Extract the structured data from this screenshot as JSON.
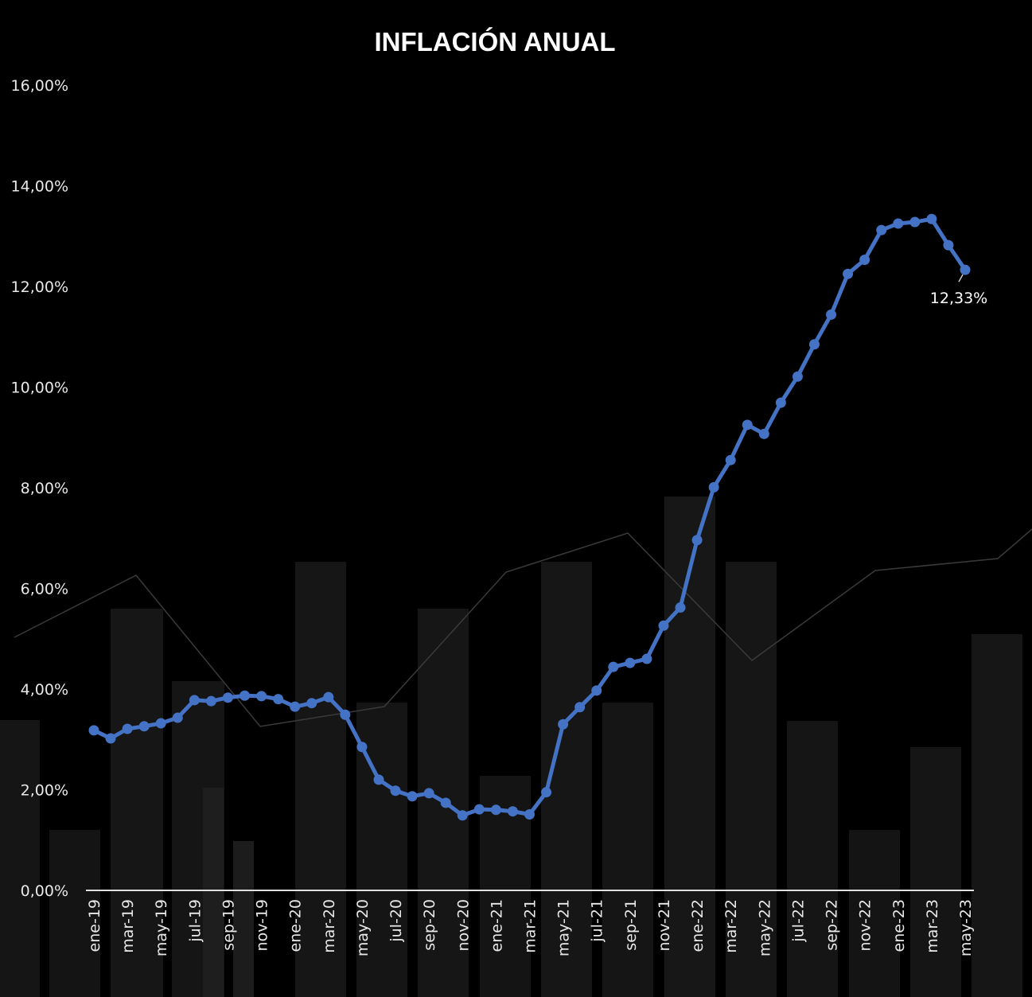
{
  "chart_data": {
    "type": "line",
    "title": "INFLACIÓN ANUAL",
    "xlabel": "",
    "ylabel": "",
    "ylim": [
      0,
      16
    ],
    "y_ticks": [
      "0,00%",
      "2,00%",
      "4,00%",
      "6,00%",
      "8,00%",
      "10,00%",
      "12,00%",
      "14,00%",
      "16,00%"
    ],
    "x_tick_labels": [
      "ene-19",
      "mar-19",
      "may-19",
      "jul-19",
      "sep-19",
      "nov-19",
      "ene-20",
      "mar-20",
      "may-20",
      "jul-20",
      "sep-20",
      "nov-20",
      "ene-21",
      "mar-21",
      "may-21",
      "jul-21",
      "sep-21",
      "nov-21",
      "ene-22",
      "mar-22",
      "may-22",
      "jul-22",
      "sep-22",
      "nov-22",
      "ene-23",
      "mar-23",
      "may-23"
    ],
    "grid": false,
    "legend": "none",
    "series": [
      {
        "name": "Inflación anual",
        "color": "#4472C4",
        "x": [
          "ene-19",
          "feb-19",
          "mar-19",
          "abr-19",
          "may-19",
          "jun-19",
          "jul-19",
          "ago-19",
          "sep-19",
          "oct-19",
          "nov-19",
          "dic-19",
          "ene-20",
          "feb-20",
          "mar-20",
          "abr-20",
          "may-20",
          "jun-20",
          "jul-20",
          "ago-20",
          "sep-20",
          "oct-20",
          "nov-20",
          "dic-20",
          "ene-21",
          "feb-21",
          "mar-21",
          "abr-21",
          "may-21",
          "jun-21",
          "jul-21",
          "ago-21",
          "sep-21",
          "oct-21",
          "nov-21",
          "dic-21",
          "ene-22",
          "feb-22",
          "mar-22",
          "abr-22",
          "may-22",
          "jun-22",
          "jul-22",
          "ago-22",
          "sep-22",
          "oct-22",
          "nov-22",
          "dic-22",
          "ene-23",
          "feb-23",
          "mar-23",
          "abr-23",
          "may-23"
        ],
        "values": [
          3.18,
          3.02,
          3.21,
          3.26,
          3.32,
          3.43,
          3.78,
          3.76,
          3.83,
          3.87,
          3.86,
          3.8,
          3.65,
          3.72,
          3.84,
          3.49,
          2.85,
          2.2,
          1.98,
          1.87,
          1.93,
          1.74,
          1.49,
          1.61,
          1.6,
          1.57,
          1.51,
          1.95,
          3.3,
          3.64,
          3.97,
          4.44,
          4.52,
          4.6,
          5.26,
          5.62,
          6.96,
          8.01,
          8.55,
          9.25,
          9.07,
          9.69,
          10.21,
          10.85,
          11.44,
          12.25,
          12.53,
          13.12,
          13.25,
          13.28,
          13.34,
          12.82,
          12.33
        ]
      }
    ],
    "annotations": [
      {
        "x": "may-23",
        "text": "12,33%"
      }
    ]
  }
}
